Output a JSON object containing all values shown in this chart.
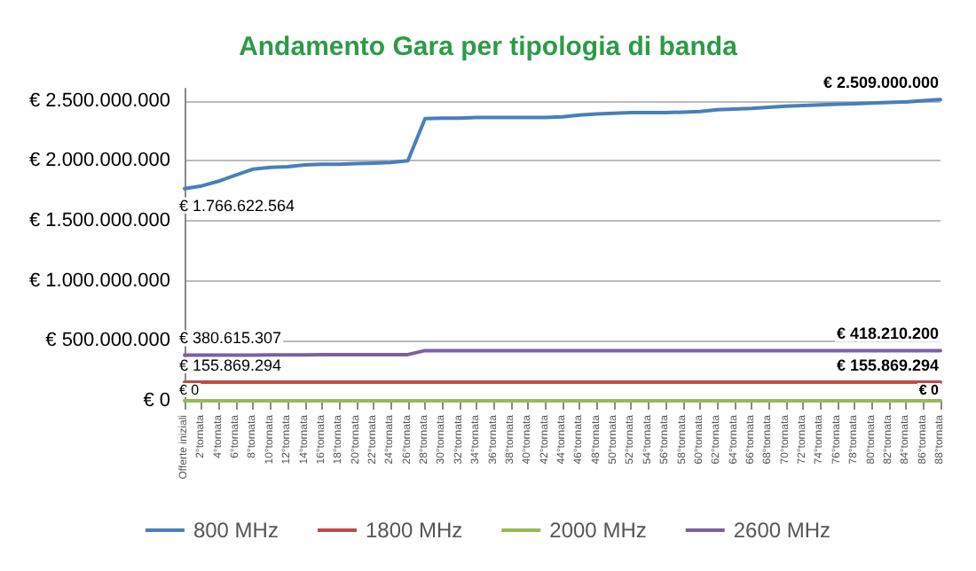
{
  "chart_data": {
    "type": "line",
    "title": "Andamento Gara per tipologia di banda",
    "categories": [
      "Offerte iniziali",
      "2°tornata",
      "4°tornata",
      "6°tornata",
      "8°tornata",
      "10°tornata",
      "12°tornata",
      "14°tornata",
      "16°tornata",
      "18°tornata",
      "20°tornata",
      "22°tornata",
      "24°tornata",
      "26°tornata",
      "28°tornata",
      "30°tornata",
      "32°tornata",
      "34°tornata",
      "36°tornata",
      "38°tornata",
      "40°tornata",
      "42°tornata",
      "44°tornata",
      "46°tornata",
      "48°tornata",
      "50°tornata",
      "52°tornata",
      "54°tornata",
      "56°tornata",
      "58°tornata",
      "60°tornata",
      "62°tornata",
      "64°tornata",
      "66°tornata",
      "68°tornata",
      "70°tornata",
      "72°tornata",
      "74°tornata",
      "76°tornata",
      "78°tornata",
      "80°tornata",
      "82°tornata",
      "84°tornata",
      "86°tornata",
      "88°tornata"
    ],
    "series": [
      {
        "name": "800 MHz",
        "color": "#4a7ebb",
        "values": [
          1766622564,
          1790000000,
          1830000000,
          1880000000,
          1930000000,
          1945000000,
          1950000000,
          1965000000,
          1970000000,
          1970000000,
          1975000000,
          1980000000,
          1985000000,
          2000000000,
          2350000000,
          2355000000,
          2355000000,
          2360000000,
          2360000000,
          2360000000,
          2360000000,
          2360000000,
          2365000000,
          2380000000,
          2390000000,
          2395000000,
          2400000000,
          2400000000,
          2400000000,
          2405000000,
          2410000000,
          2425000000,
          2430000000,
          2435000000,
          2445000000,
          2455000000,
          2460000000,
          2465000000,
          2470000000,
          2475000000,
          2480000000,
          2485000000,
          2490000000,
          2500000000,
          2509000000
        ],
        "value_labels": [
          "€ 1.766.622.564",
          null,
          null,
          null,
          null,
          null,
          null,
          null,
          null,
          null,
          null,
          null,
          null,
          null,
          null,
          null,
          null,
          null,
          null,
          null,
          null,
          null,
          null,
          null,
          null,
          null,
          null,
          null,
          null,
          null,
          null,
          null,
          null,
          null,
          null,
          null,
          null,
          null,
          null,
          null,
          null,
          null,
          null,
          null,
          "€ 2.509.000.000"
        ]
      },
      {
        "name": "1800 MHz",
        "color": "#be4b48",
        "values": [
          155869294,
          155869294,
          155869294,
          155869294,
          155869294,
          155869294,
          155869294,
          155869294,
          155869294,
          155869294,
          155869294,
          155869294,
          155869294,
          155869294,
          155869294,
          155869294,
          155869294,
          155869294,
          155869294,
          155869294,
          155869294,
          155869294,
          155869294,
          155869294,
          155869294,
          155869294,
          155869294,
          155869294,
          155869294,
          155869294,
          155869294,
          155869294,
          155869294,
          155869294,
          155869294,
          155869294,
          155869294,
          155869294,
          155869294,
          155869294,
          155869294,
          155869294,
          155869294,
          155869294,
          155869294
        ],
        "value_labels": [
          "€ 155.869.294",
          null,
          null,
          null,
          null,
          null,
          null,
          null,
          null,
          null,
          null,
          null,
          null,
          null,
          null,
          null,
          null,
          null,
          null,
          null,
          null,
          null,
          null,
          null,
          null,
          null,
          null,
          null,
          null,
          null,
          null,
          null,
          null,
          null,
          null,
          null,
          null,
          null,
          null,
          null,
          null,
          null,
          null,
          null,
          "€ 155.869.294"
        ]
      },
      {
        "name": "2000 MHz",
        "color": "#98b954",
        "values": [
          0,
          0,
          0,
          0,
          0,
          0,
          0,
          0,
          0,
          0,
          0,
          0,
          0,
          0,
          0,
          0,
          0,
          0,
          0,
          0,
          0,
          0,
          0,
          0,
          0,
          0,
          0,
          0,
          0,
          0,
          0,
          0,
          0,
          0,
          0,
          0,
          0,
          0,
          0,
          0,
          0,
          0,
          0,
          0,
          0
        ],
        "value_labels": [
          "€ 0",
          null,
          null,
          null,
          null,
          null,
          null,
          null,
          null,
          null,
          null,
          null,
          null,
          null,
          null,
          null,
          null,
          null,
          null,
          null,
          null,
          null,
          null,
          null,
          null,
          null,
          null,
          null,
          null,
          null,
          null,
          null,
          null,
          null,
          null,
          null,
          null,
          null,
          null,
          null,
          null,
          null,
          null,
          null,
          "€ 0"
        ]
      },
      {
        "name": "2600 MHz",
        "color": "#7d60a0",
        "values": [
          380615307,
          380615307,
          380615307,
          381000000,
          381000000,
          382000000,
          383000000,
          383000000,
          384000000,
          384000000,
          385000000,
          385000000,
          385000000,
          385000000,
          418000000,
          418000000,
          418000000,
          418000000,
          418000000,
          418000000,
          418000000,
          418000000,
          418000000,
          418000000,
          418000000,
          418000000,
          418000000,
          418000000,
          418000000,
          418000000,
          418210200,
          418210200,
          418210200,
          418210200,
          418210200,
          418210200,
          418210200,
          418210200,
          418210200,
          418210200,
          418210200,
          418210200,
          418210200,
          418210200,
          418210200
        ],
        "value_labels": [
          "€ 380.615.307",
          null,
          null,
          null,
          null,
          null,
          null,
          null,
          null,
          null,
          null,
          null,
          null,
          null,
          null,
          null,
          null,
          null,
          null,
          null,
          null,
          null,
          null,
          null,
          null,
          null,
          null,
          null,
          null,
          null,
          null,
          null,
          null,
          null,
          null,
          null,
          null,
          null,
          null,
          null,
          null,
          null,
          null,
          null,
          "€ 418.210.200"
        ]
      }
    ],
    "ylim": [
      0,
      2600000000
    ],
    "yticks": [
      {
        "value": 0,
        "label": "€ 0"
      },
      {
        "value": 500000000,
        "label": "€ 500.000.000"
      },
      {
        "value": 1000000000,
        "label": "€ 1.000.000.000"
      },
      {
        "value": 1500000000,
        "label": "€ 1.500.000.000"
      },
      {
        "value": 2000000000,
        "label": "€ 2.000.000.000"
      },
      {
        "value": 2500000000,
        "label": "€ 2.500.000.000"
      }
    ],
    "grid": "y",
    "legend": "bottom",
    "marker": "none",
    "line_style": "solid"
  }
}
